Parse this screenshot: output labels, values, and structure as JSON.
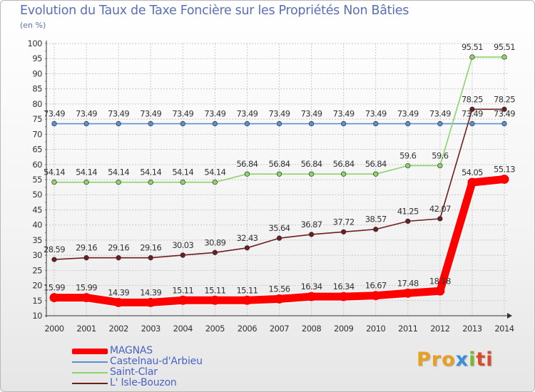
{
  "header": {
    "title": "Evolution du Taux de Taxe Foncière sur les Propriétés Non Bâties",
    "unit": "(en %)"
  },
  "logo": {
    "part1": "Pro",
    "part2": "x",
    "part3": "i",
    "part4": "ti"
  },
  "colors": {
    "magnas": "#ff0000",
    "castelnau": "#5a8fd0",
    "saintclar": "#8ed46a",
    "lisle": "#6e1e1e",
    "grid": "#c8c8c8",
    "axis": "#333333"
  },
  "chart_data": {
    "type": "line",
    "title": "Evolution du Taux de Taxe Foncière sur les Propriétés Non Bâties",
    "ylabel": "(en %)",
    "xlabel": "",
    "x": [
      2000,
      2001,
      2002,
      2003,
      2004,
      2005,
      2006,
      2007,
      2008,
      2009,
      2010,
      2011,
      2012,
      2013,
      2014
    ],
    "ylim": [
      10,
      100
    ],
    "yticks": [
      10,
      15,
      20,
      25,
      30,
      35,
      40,
      45,
      50,
      55,
      60,
      65,
      70,
      75,
      80,
      85,
      90,
      95,
      100
    ],
    "grid": true,
    "legend_position": "bottom-left",
    "series": [
      {
        "name": "MAGNAS",
        "color": "#ff0000",
        "width": 11,
        "values": [
          15.99,
          15.99,
          14.39,
          14.39,
          15.11,
          15.11,
          15.11,
          15.56,
          16.34,
          16.34,
          16.67,
          17.48,
          18.18,
          54.05,
          55.13
        ],
        "labels": [
          "15.99",
          "15.99",
          "14.39",
          "14.39",
          "15.11",
          "15.11",
          "15.11",
          "15.56",
          "16.34",
          "16.34",
          "16.67",
          "17.48",
          "18.18",
          "54.05",
          "55.13"
        ]
      },
      {
        "name": "Castelnau-d'Arbieu",
        "color": "#5a8fd0",
        "width": 1.6,
        "values": [
          73.49,
          73.49,
          73.49,
          73.49,
          73.49,
          73.49,
          73.49,
          73.49,
          73.49,
          73.49,
          73.49,
          73.49,
          73.49,
          73.49,
          73.49
        ],
        "labels": [
          "73.49",
          "73.49",
          "73.49",
          "73.49",
          "73.49",
          "73.49",
          "73.49",
          "73.49",
          "73.49",
          "73.49",
          "73.49",
          "73.49",
          "73.49",
          "73.49",
          "73.49"
        ]
      },
      {
        "name": "Saint-Clar",
        "color": "#8ed46a",
        "width": 1.6,
        "values": [
          54.14,
          54.14,
          54.14,
          54.14,
          54.14,
          54.14,
          56.84,
          56.84,
          56.84,
          56.84,
          56.84,
          59.6,
          59.6,
          95.51,
          95.51
        ],
        "labels": [
          "54.14",
          "54.14",
          "54.14",
          "54.14",
          "54.14",
          "54.14",
          "56.84",
          "56.84",
          "56.84",
          "56.84",
          "56.84",
          "59.6",
          "59.6",
          "95.51",
          "95.51"
        ]
      },
      {
        "name": "L' Isle-Bouzon",
        "color": "#6e1e1e",
        "width": 1.6,
        "values": [
          28.59,
          29.16,
          29.16,
          29.16,
          30.03,
          30.89,
          32.43,
          35.64,
          36.87,
          37.72,
          38.57,
          41.25,
          42.07,
          78.25,
          78.25
        ],
        "labels": [
          "28.59",
          "29.16",
          "29.16",
          "29.16",
          "30.03",
          "30.89",
          "32.43",
          "35.64",
          "36.87",
          "37.72",
          "38.57",
          "41.25",
          "42.07",
          "78.25",
          "78.25"
        ]
      }
    ]
  }
}
